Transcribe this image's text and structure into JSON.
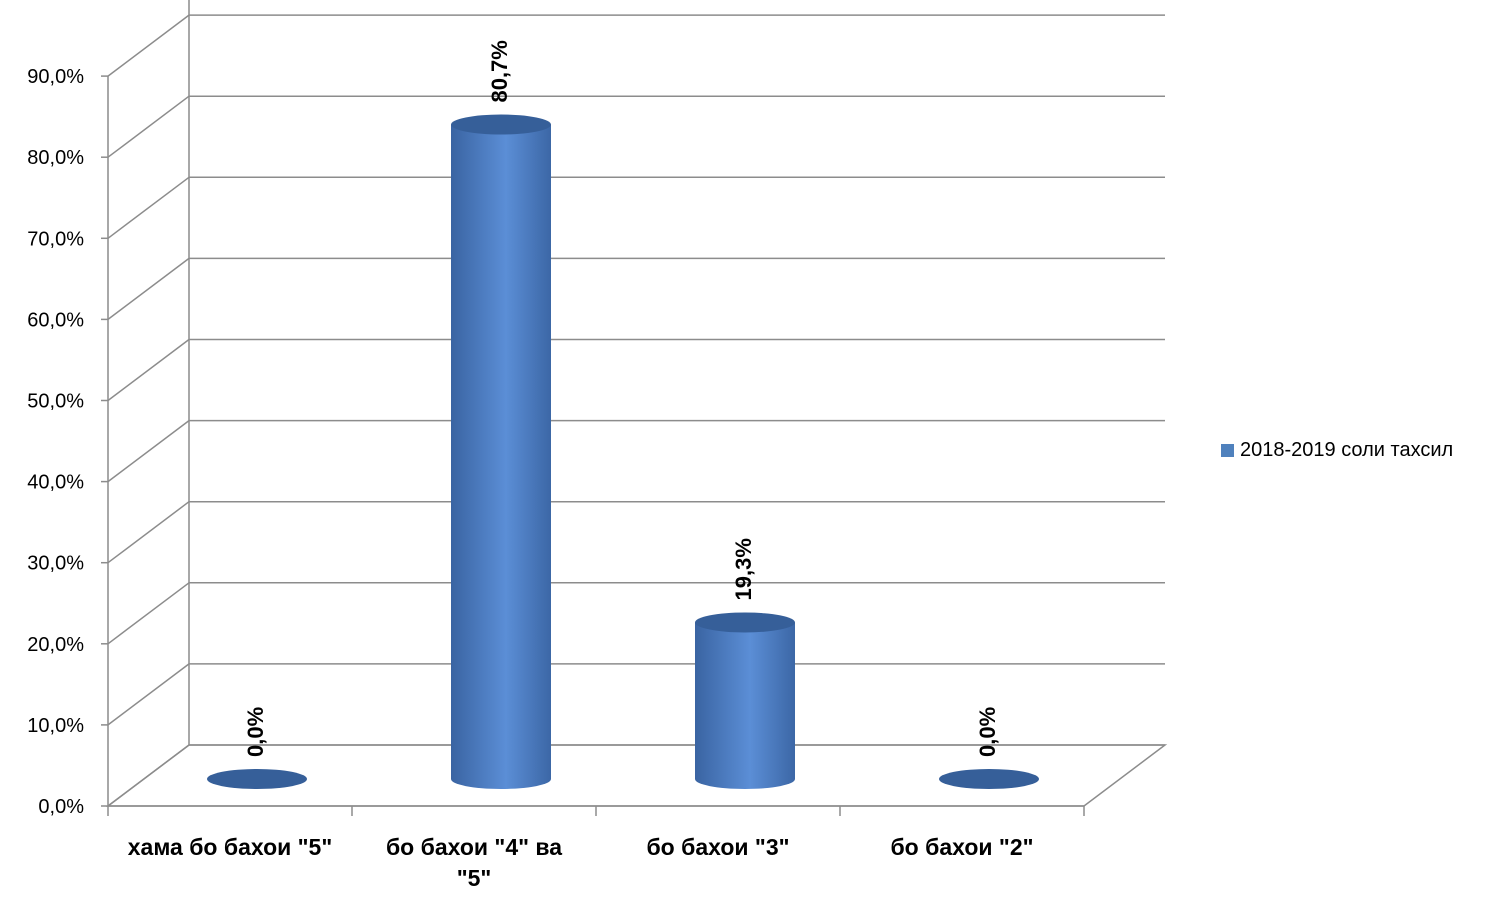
{
  "chart_data": {
    "type": "bar",
    "style": "3d-cylinder",
    "categories": [
      "хама бо бахои \"5\"",
      "бо бахои \"4\" ва \"5\"",
      "бо бахои \"3\"",
      "бо бахои \"2\""
    ],
    "series": [
      {
        "name": "2018-2019 соли тахсил",
        "values": [
          0.0,
          80.7,
          19.3,
          0.0
        ],
        "color": "#4F81BD"
      }
    ],
    "data_labels": [
      "0,0%",
      "80,7%",
      "19,3%",
      "0,0%"
    ],
    "y_ticks": [
      "0,0%",
      "10,0%",
      "20,0%",
      "30,0%",
      "40,0%",
      "50,0%",
      "60,0%",
      "70,0%",
      "80,0%",
      "90,0%"
    ],
    "ylim": [
      0,
      90
    ],
    "grid": true,
    "legend_position": "right"
  }
}
